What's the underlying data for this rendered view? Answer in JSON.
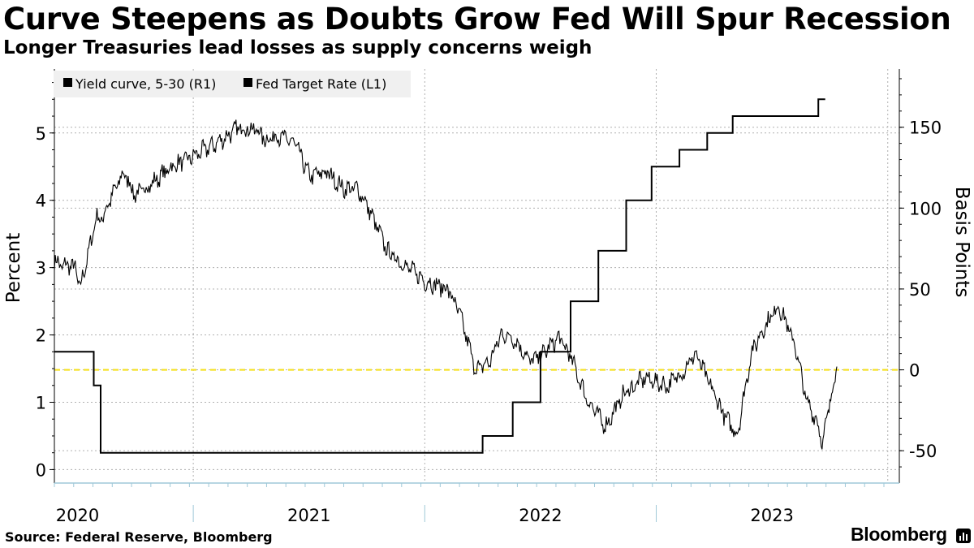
{
  "header": {
    "title": "Curve Steepens as Doubts Grow Fed Will Spur Recession",
    "subtitle": "Longer Treasuries lead losses as supply concerns weigh"
  },
  "footer": {
    "source": "Source: Federal Reserve, Bloomberg",
    "brand": "Bloomberg"
  },
  "chart_data": {
    "type": "line",
    "title": "Curve Steepens as Doubts Grow Fed Will Spur Recession",
    "subtitle": "Longer Treasuries lead losses as supply concerns weigh",
    "x_range": [
      2019.9,
      2023.55
    ],
    "x_ticks": [
      "2020",
      "2021",
      "2022",
      "2023"
    ],
    "y_left": {
      "label": "Percent",
      "range": [
        -0.2,
        5.95
      ],
      "ticks": [
        "0",
        "1",
        "2",
        "3",
        "4",
        "5"
      ]
    },
    "y_right": {
      "label": "Basis Points",
      "range": [
        -70,
        186
      ],
      "ticks": [
        "-50",
        "0",
        "50",
        "100",
        "150"
      ],
      "reference_line": 0
    },
    "legend": [
      "Yield curve, 5-30 (R1)",
      "Fed Target Rate  (L1)"
    ],
    "legend_position": "top-left",
    "colors": {
      "series": "#000000",
      "reference": "#f5e01e",
      "grid": "#b0b0b0",
      "axis": "#9fc8d8"
    },
    "series": [
      {
        "name": "Yield curve, 5-30 (R1)",
        "axis": "right",
        "x": [
          2019.9,
          2019.93,
          2019.96,
          2019.99,
          2020.01,
          2020.06,
          2020.08,
          2020.1,
          2020.15,
          2020.2,
          2020.25,
          2020.32,
          2020.4,
          2020.5,
          2020.6,
          2020.7,
          2020.78,
          2020.81,
          2020.86,
          2020.94,
          2021.0,
          2021.08,
          2021.15,
          2021.21,
          2021.25,
          2021.3,
          2021.34,
          2021.42,
          2021.5,
          2021.6,
          2021.65,
          2021.72,
          2021.78,
          2021.83,
          2021.88,
          2021.96,
          2022.01,
          2022.08,
          2022.13,
          2022.2,
          2022.28,
          2022.36,
          2022.45,
          2022.55,
          2022.62,
          2022.67,
          2022.75,
          2022.8,
          2022.85,
          2022.91,
          2022.96,
          2023.03,
          2023.1,
          2023.15,
          2023.19,
          2023.22,
          2023.25,
          2023.28
        ],
        "values": [
          68,
          64,
          65,
          63,
          50,
          80,
          95,
          92,
          108,
          122,
          108,
          115,
          125,
          132,
          140,
          150,
          148,
          142,
          145,
          140,
          120,
          122,
          112,
          112,
          102,
          86,
          73,
          64,
          55,
          50,
          35,
          0,
          5,
          22,
          20,
          5,
          10,
          20,
          8,
          -18,
          -35,
          -15,
          -5,
          -10,
          0,
          10,
          -15,
          -30,
          -40,
          10,
          25,
          40,
          15,
          -20,
          -30,
          -45,
          -20,
          2
        ]
      },
      {
        "name": "Fed Target Rate  (L1)",
        "axis": "left",
        "x": [
          2019.9,
          2020.07,
          2020.07,
          2020.1,
          2020.1,
          2021.75,
          2021.75,
          2021.88,
          2021.88,
          2022.0,
          2022.0,
          2022.13,
          2022.13,
          2022.25,
          2022.25,
          2022.37,
          2022.37,
          2022.48,
          2022.48,
          2022.6,
          2022.6,
          2022.72,
          2022.72,
          2022.83,
          2022.83,
          2023.0,
          2023.0,
          2023.2,
          2023.2,
          2023.23
        ],
        "values": [
          1.75,
          1.75,
          1.25,
          1.25,
          0.25,
          0.25,
          0.5,
          0.5,
          1.0,
          1.0,
          1.75,
          1.75,
          2.5,
          2.5,
          3.25,
          3.25,
          4.0,
          4.0,
          4.5,
          4.5,
          4.75,
          4.75,
          5.0,
          5.0,
          5.25,
          5.25,
          5.25,
          5.25,
          5.5,
          5.5
        ]
      }
    ]
  }
}
